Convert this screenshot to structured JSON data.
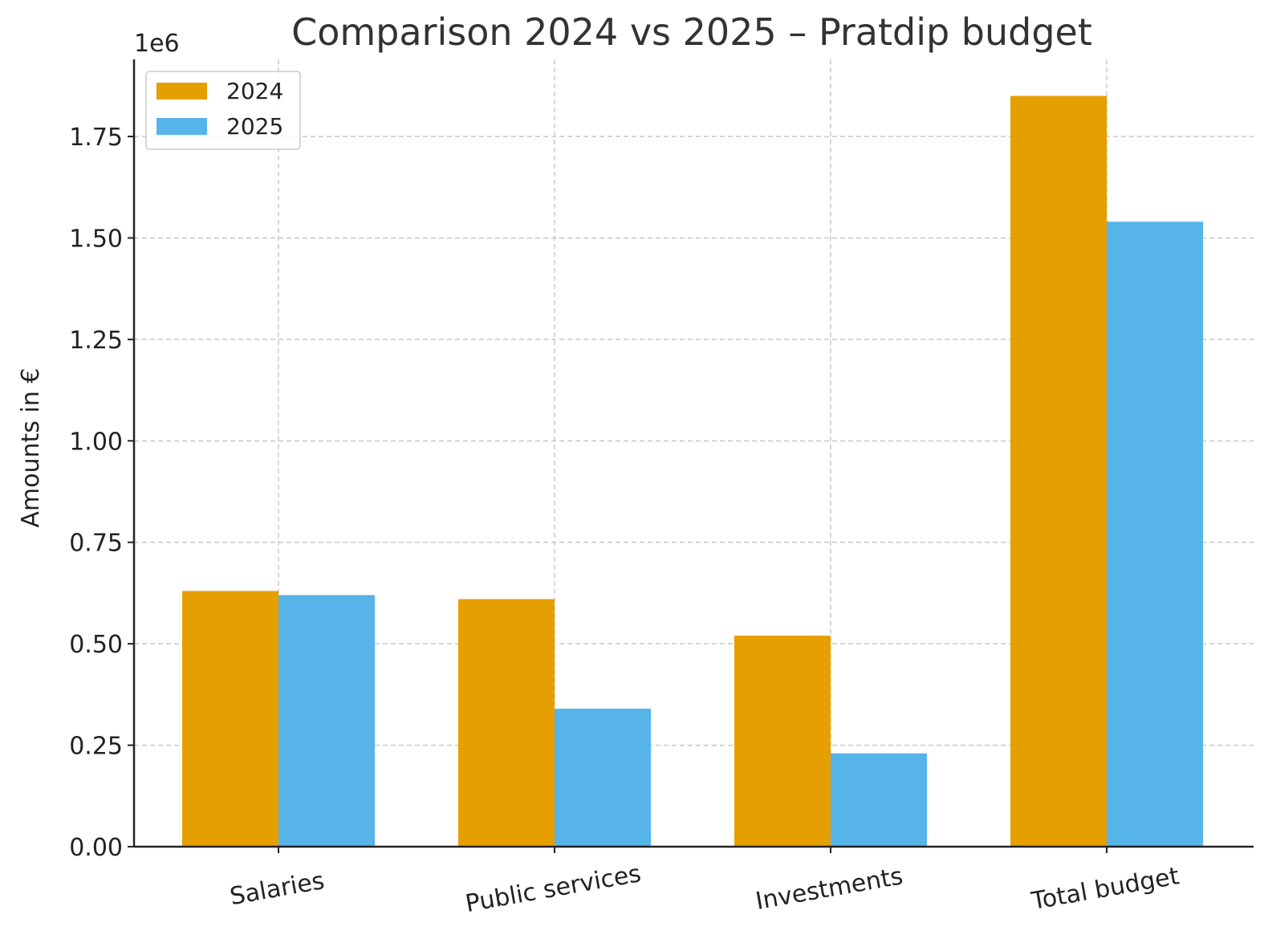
{
  "chart_data": {
    "type": "bar",
    "title": "Comparison 2024 vs 2025 – Pratdip budget",
    "xlabel": "",
    "ylabel": "Amounts in €",
    "y_offset_text": "1e6",
    "categories": [
      "Salaries",
      "Public services",
      "Investments",
      "Total budget"
    ],
    "series": [
      {
        "name": "2024",
        "color": "#E69F00",
        "values": [
          630000,
          610000,
          520000,
          1850000
        ]
      },
      {
        "name": "2025",
        "color": "#56B4E9",
        "values": [
          620000,
          340000,
          230000,
          1540000
        ]
      }
    ],
    "ylim": [
      0,
      1940000
    ],
    "yticks": [
      0,
      250000,
      500000,
      750000,
      1000000,
      1250000,
      1500000,
      1750000
    ],
    "ytick_labels": [
      "0.00",
      "0.25",
      "0.50",
      "0.75",
      "1.00",
      "1.25",
      "1.50",
      "1.75"
    ],
    "grid": true,
    "legend_position": "top-left"
  }
}
